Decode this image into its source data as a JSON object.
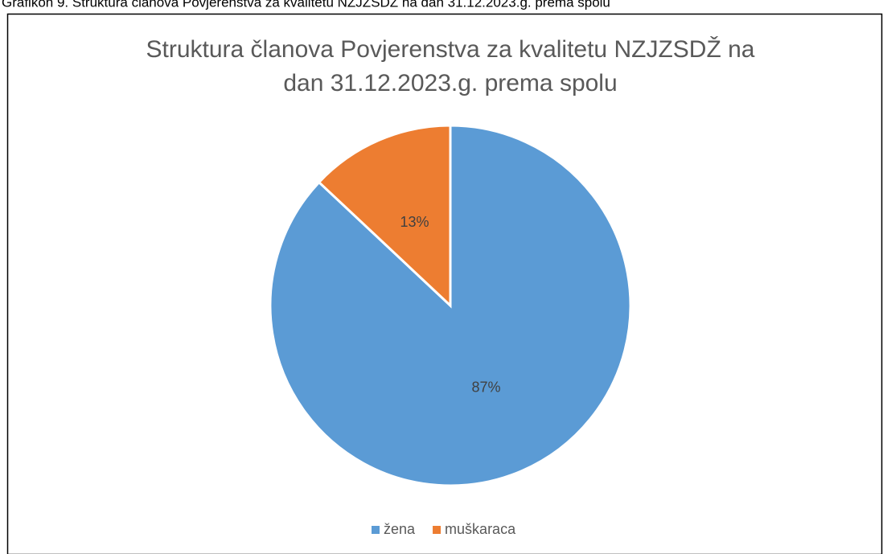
{
  "caption": "Grafikon 9. Struktura članova Povjerenstva za kvalitetu NZJZSDŽ na dan 31.12.2023.g. prema spolu",
  "chart_data": {
    "type": "pie",
    "title": [
      "Struktura članova Povjerenstva za kvalitetu NZJZSDŽ na",
      "dan 31.12.2023.g. prema spolu"
    ],
    "categories": [
      "žena",
      "muškaraca"
    ],
    "values": [
      87,
      13
    ],
    "value_labels": [
      "87%",
      "13%"
    ],
    "colors": [
      "#5b9bd5",
      "#ed7d31"
    ],
    "legend": "bottom"
  }
}
